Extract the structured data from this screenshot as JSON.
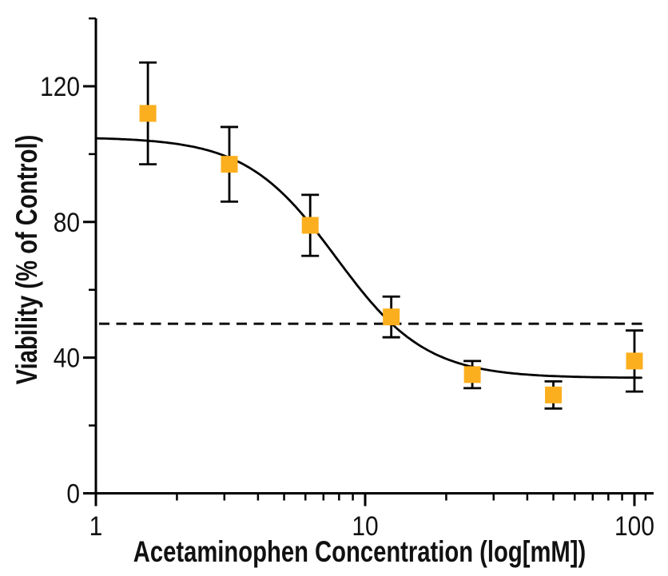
{
  "chart_data": {
    "type": "scatter",
    "title": "",
    "xlabel": "Acetaminophen Concentration (log[mM])",
    "ylabel": "Viability (% of Control)",
    "x_scale": "log",
    "xlim": [
      1,
      118
    ],
    "ylim": [
      0,
      140
    ],
    "grid": false,
    "legend": false,
    "x_major_ticks": [
      {
        "value": 1,
        "label": "1"
      },
      {
        "value": 10,
        "label": "10"
      },
      {
        "value": 100,
        "label": "100"
      }
    ],
    "x_minor_ticks": [
      2,
      3,
      4,
      5,
      6,
      7,
      8,
      9,
      20,
      30,
      40,
      50,
      60,
      70,
      80,
      90,
      110
    ],
    "y_major_ticks": [
      {
        "value": 0,
        "label": "0"
      },
      {
        "value": 40,
        "label": "40"
      },
      {
        "value": 80,
        "label": "80"
      },
      {
        "value": 120,
        "label": "120"
      }
    ],
    "y_minor_ticks": [
      20,
      60,
      100,
      140
    ],
    "series": [
      {
        "name": "Viability",
        "marker": "square",
        "marker_color": "#FBAF1E",
        "marker_size": 21,
        "line": "none",
        "points": [
          {
            "x": 1.56,
            "y": 112,
            "y_err": 15
          },
          {
            "x": 3.13,
            "y": 97,
            "y_err": 11
          },
          {
            "x": 6.25,
            "y": 79,
            "y_err": 9
          },
          {
            "x": 12.5,
            "y": 52,
            "y_err": 6
          },
          {
            "x": 25,
            "y": 35,
            "y_err": 4
          },
          {
            "x": 50,
            "y": 29,
            "y_err": 4
          },
          {
            "x": 100,
            "y": 39,
            "y_err": 9
          }
        ]
      }
    ],
    "fit_curve": {
      "model": "4PL-sigmoid",
      "top": 105,
      "bottom": 34,
      "ec50": 7.8,
      "hill": 2.6,
      "x_start": 1,
      "x_end": 106,
      "color": "#000000"
    },
    "reference_line": {
      "y": 50,
      "style": "dashed",
      "color": "#111111"
    }
  }
}
